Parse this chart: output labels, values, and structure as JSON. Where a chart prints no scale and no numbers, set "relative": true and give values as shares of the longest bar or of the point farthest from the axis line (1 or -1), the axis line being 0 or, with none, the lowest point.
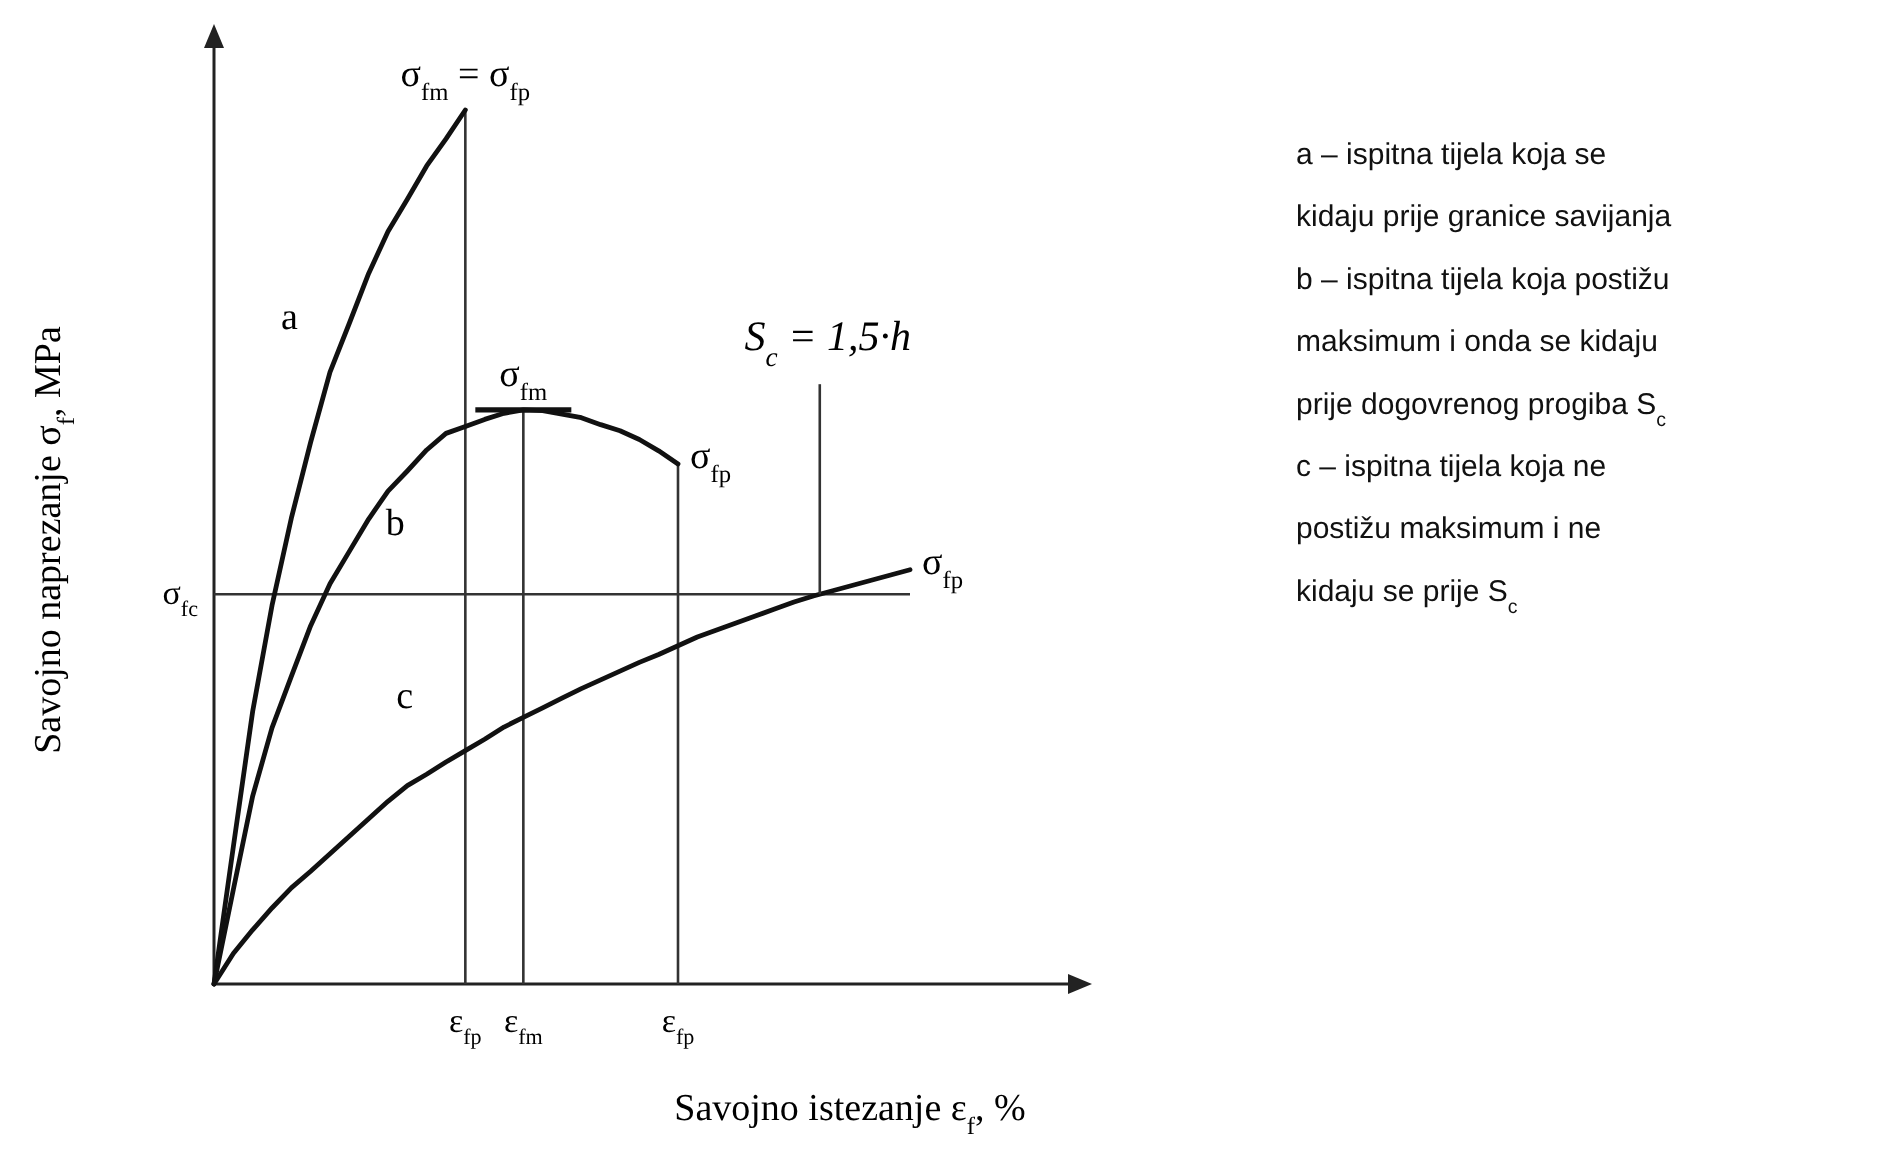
{
  "chart_data": {
    "type": "line",
    "relative": true,
    "xlabel": "Savojno istezanje ε$_{f}$, %",
    "ylabel": "Savojno naprezanje σ$_{f}$, MPa",
    "marker": "none",
    "line_style": "solid",
    "categories": [
      null,
      null,
      null,
      null,
      null,
      null,
      null,
      null,
      null,
      null,
      null,
      null,
      null,
      "ε$_{fp}$",
      null,
      null,
      "ε$_{fm}$",
      null,
      null,
      null,
      null,
      null,
      null,
      null,
      "ε$_{fp}$",
      null,
      null,
      null,
      null,
      null,
      null,
      null,
      null,
      null,
      null,
      null,
      null
    ],
    "series": [
      {
        "name": "a",
        "color": "#111111",
        "values": [
          0,
          0.157,
          0.312,
          0.433,
          0.533,
          0.62,
          0.7,
          0.756,
          0.813,
          0.861,
          0.898,
          0.936,
          0.967,
          1,
          null,
          null,
          null,
          null,
          null,
          null,
          null,
          null,
          null,
          null,
          null,
          null,
          null,
          null,
          null,
          null,
          null,
          null,
          null,
          null,
          null,
          null,
          null
        ]
      },
      {
        "name": "b",
        "color": "#111111",
        "values": [
          0,
          0.108,
          0.215,
          0.293,
          0.352,
          0.41,
          0.458,
          0.495,
          0.532,
          0.564,
          0.587,
          0.611,
          0.63,
          0.638,
          0.646,
          0.653,
          0.657,
          0.656,
          0.652,
          0.648,
          0.64,
          0.633,
          0.623,
          0.61,
          0.595,
          null,
          null,
          null,
          null,
          null,
          null,
          null,
          null,
          null,
          null,
          null,
          null
        ]
      },
      {
        "name": "c",
        "color": "#111111",
        "values": [
          0,
          0.035,
          0.062,
          0.087,
          0.11,
          0.129,
          0.149,
          0.169,
          0.189,
          0.209,
          0.227,
          0.24,
          0.254,
          0.267,
          0.28,
          0.294,
          0.305,
          0.316,
          0.327,
          0.338,
          0.348,
          0.358,
          0.368,
          0.377,
          0.387,
          0.397,
          0.405,
          0.413,
          0.421,
          0.429,
          0.437,
          0.444,
          0.45,
          0.456,
          0.462,
          0.468,
          0.474
        ]
      }
    ],
    "ref_lines": [
      {
        "axis": "y",
        "value": 0.446,
        "label": "σ$_{fc}$",
        "color": "#333333"
      }
    ],
    "annotations": [
      {
        "text": "σ$_{fm}$ = σ$_{fp}$",
        "x": "ε$_{fp}$",
        "y": 1
      },
      {
        "text": "σ$_{fm}$",
        "x": "ε$_{fm}$",
        "y": 0.657
      },
      {
        "text": "S$_{c}$ = 1,5·h",
        "y": 0.446
      },
      "σ$_{fp}$",
      "σ$_{fp}$",
      "a – ispitna tijela koja se\nkidaju prije granice savijanja",
      "b – ispitna tijela koja postižu\nmaksimum i onda se kidaju\nprije dogovrenog progiba S$_{c}$",
      "c – ispitna tijela koja ne\npostižu maksimum i ne\nkidaju se prije S$_{c}$"
    ]
  }
}
